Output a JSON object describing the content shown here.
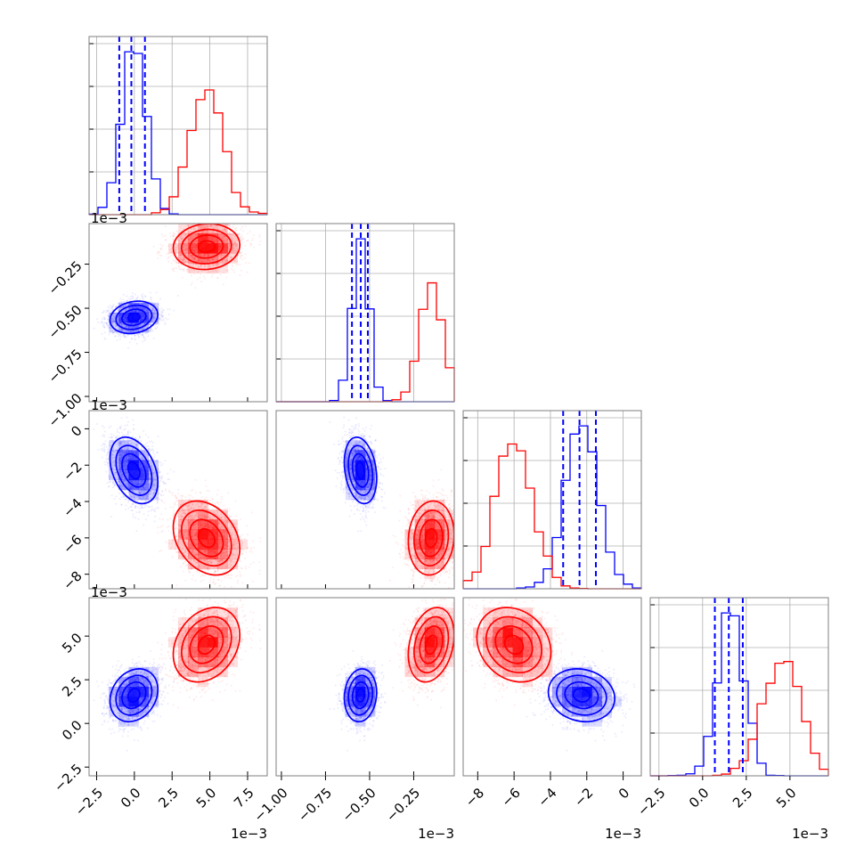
{
  "chart_data": {
    "type": "corner",
    "parameters": [
      {
        "ticks": [
          -2.5,
          0.0,
          2.5,
          5.0,
          7.5
        ],
        "tick_labels": [
          "−2.5",
          "0.0",
          "2.5",
          "5.0",
          "7.5"
        ],
        "range": [
          -3.0,
          8.8
        ],
        "offset_label": "1e−3"
      },
      {
        "ticks": [
          -1.0,
          -0.75,
          -0.5,
          -0.25
        ],
        "tick_labels": [
          "−1.00",
          "−0.75",
          "−0.50",
          "−0.25"
        ],
        "range": [
          -1.03,
          -0.02
        ],
        "offset_label": "1e−3"
      },
      {
        "ticks": [
          -8,
          -6,
          -4,
          -2,
          0
        ],
        "tick_labels": [
          "−8",
          "−6",
          "−4",
          "−2",
          "0"
        ],
        "range": [
          -8.8,
          1.0
        ],
        "offset_label": "1e−3"
      },
      {
        "ticks": [
          -2.5,
          0.0,
          2.5,
          5.0
        ],
        "tick_labels": [
          "−2.5",
          "0.0",
          "2.5",
          "5.0"
        ],
        "range": [
          -3.0,
          7.2
        ],
        "offset_label": "1e−3"
      }
    ],
    "series": [
      {
        "color": "#0000ff",
        "mean": [
          0.0,
          -0.55,
          -2.3,
          1.6
        ],
        "sd": [
          0.8,
          0.045,
          0.9,
          0.75
        ],
        "corr": [
          [
            1,
            0.15,
            -0.35,
            0.2
          ],
          [
            0.15,
            1,
            -0.25,
            0.1
          ],
          [
            -0.35,
            -0.25,
            1,
            -0.15
          ],
          [
            0.2,
            0.1,
            -0.15,
            1
          ]
        ],
        "quantiles": [
          [
            -1.0,
            -0.2,
            0.7
          ],
          [
            -0.6,
            -0.55,
            -0.51
          ],
          [
            -3.3,
            -2.4,
            -1.5
          ],
          [
            0.7,
            1.5,
            2.3
          ]
        ]
      },
      {
        "color": "#ff0000",
        "mean": [
          4.8,
          -0.15,
          -6.0,
          4.5
        ],
        "sd": [
          1.1,
          0.065,
          1.0,
          1.05
        ],
        "corr": [
          [
            1,
            0.1,
            -0.3,
            0.3
          ],
          [
            0.1,
            1,
            0.1,
            0.25
          ],
          [
            -0.3,
            0.1,
            1,
            -0.2
          ],
          [
            0.3,
            0.25,
            -0.2,
            1
          ]
        ],
        "quantiles": []
      }
    ],
    "grid": true
  }
}
